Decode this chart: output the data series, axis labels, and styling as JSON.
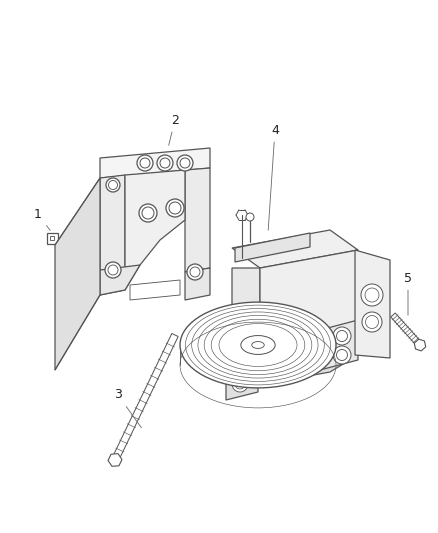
{
  "background_color": "#ffffff",
  "line_color": "#555555",
  "label_color": "#222222",
  "figsize": [
    4.38,
    5.33
  ],
  "dpi": 100,
  "font_size": 9,
  "lw": 0.9
}
